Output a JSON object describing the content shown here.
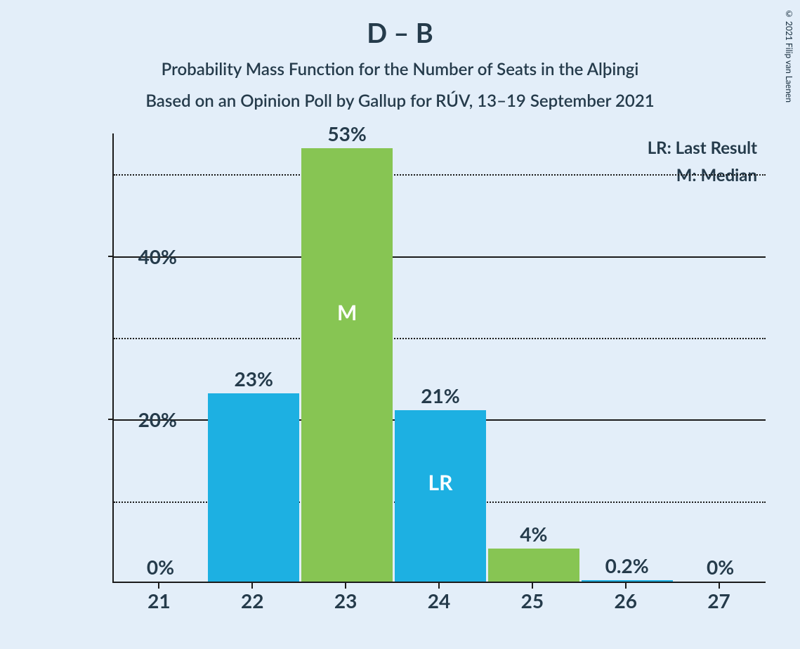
{
  "title": "D – B",
  "subtitle1": "Probability Mass Function for the Number of Seats in the Alþingi",
  "subtitle2": "Based on an Opinion Poll by Gallup for RÚV, 13–19 September 2021",
  "copyright": "© 2021 Filip van Laenen",
  "legend": {
    "lr": "LR: Last Result",
    "m": "M: Median"
  },
  "chart": {
    "type": "bar",
    "background_color": "#e3eef9",
    "text_color": "#253b4b",
    "axis_color": "#1a1a1a",
    "bar_colors": {
      "blue": "#1db0e2",
      "green": "#87c553"
    },
    "title_fontsize": 38,
    "subtitle_fontsize": 24,
    "label_fontsize": 28,
    "y_axis": {
      "min": 0,
      "max": 55,
      "major_ticks": [
        20,
        40
      ],
      "minor_ticks": [
        10,
        30,
        50
      ],
      "format": "percent"
    },
    "bars": [
      {
        "x": "21",
        "value": 0,
        "label": "0%",
        "color": "blue",
        "annotation": null
      },
      {
        "x": "22",
        "value": 23,
        "label": "23%",
        "color": "blue",
        "annotation": null
      },
      {
        "x": "23",
        "value": 53,
        "label": "53%",
        "color": "green",
        "annotation": "M"
      },
      {
        "x": "24",
        "value": 21,
        "label": "21%",
        "color": "blue",
        "annotation": "LR"
      },
      {
        "x": "25",
        "value": 4,
        "label": "4%",
        "color": "green",
        "annotation": null
      },
      {
        "x": "26",
        "value": 0.2,
        "label": "0.2%",
        "color": "blue",
        "annotation": null
      },
      {
        "x": "27",
        "value": 0,
        "label": "0%",
        "color": "green",
        "annotation": null
      }
    ],
    "bar_width_ratio": 0.98,
    "annotation_color": "#ffffff"
  }
}
